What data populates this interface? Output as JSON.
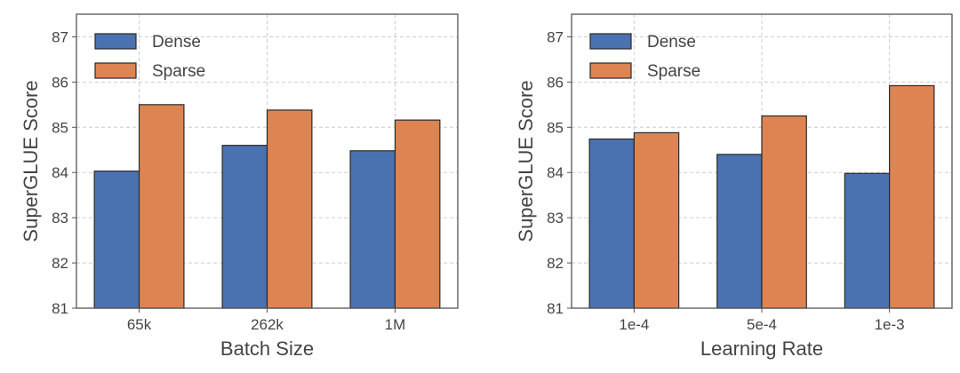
{
  "colors": {
    "dense": "#4a72b0",
    "sparse": "#dd8452",
    "edge": "#2a2a2a",
    "grid": "#cccccc",
    "frame": "#555555"
  },
  "chart_data": [
    {
      "type": "bar",
      "title": "",
      "xlabel": "Batch Size",
      "ylabel": "SuperGLUE Score",
      "categories": [
        "65k",
        "262k",
        "1M"
      ],
      "series": [
        {
          "name": "Dense",
          "values": [
            84.03,
            84.6,
            84.48
          ]
        },
        {
          "name": "Sparse",
          "values": [
            85.5,
            85.38,
            85.16
          ]
        }
      ],
      "ylim": [
        81,
        87.5
      ],
      "yticks": [
        "81",
        "82",
        "83",
        "84",
        "85",
        "86",
        "87"
      ],
      "grid": true,
      "legend": "top-left"
    },
    {
      "type": "bar",
      "title": "",
      "xlabel": "Learning Rate",
      "ylabel": "SuperGLUE Score",
      "categories": [
        "1e-4",
        "5e-4",
        "1e-3"
      ],
      "series": [
        {
          "name": "Dense",
          "values": [
            84.74,
            84.4,
            83.98
          ]
        },
        {
          "name": "Sparse",
          "values": [
            84.88,
            85.25,
            85.92
          ]
        }
      ],
      "ylim": [
        81,
        87.5
      ],
      "yticks": [
        "81",
        "82",
        "83",
        "84",
        "85",
        "86",
        "87"
      ],
      "grid": true,
      "legend": "top-left"
    }
  ]
}
